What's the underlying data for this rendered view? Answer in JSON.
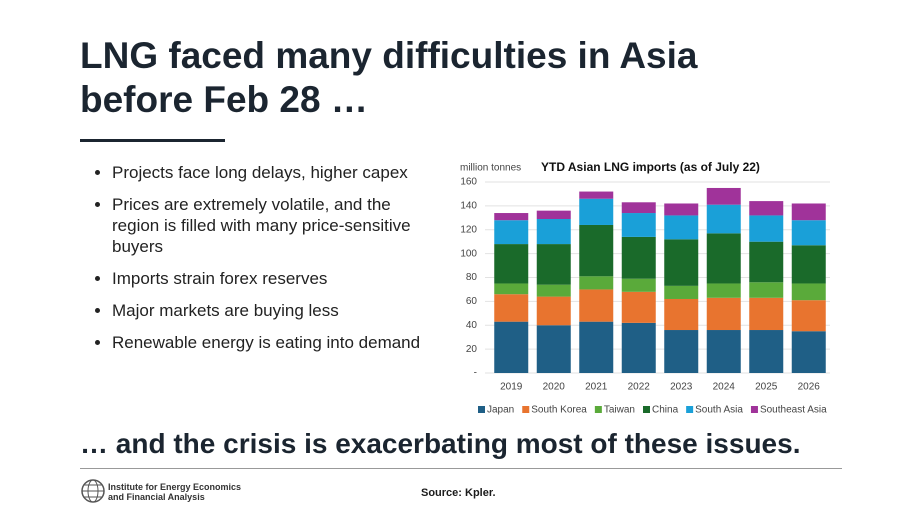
{
  "slide": {
    "title": [
      "LNG faced many difficulties in Asia",
      "before Feb 28 …"
    ],
    "bullets": [
      "Projects face long delays, higher capex",
      "Prices are extremely volatile, and the region is filled with many price-sensitive buyers",
      "Imports strain forex reserves",
      "Major markets are buying less",
      "Renewable energy is eating into demand"
    ],
    "conclusion": "… and the crisis is exacerbating most of these issues.",
    "logo_text": [
      "Institute for Energy Economics",
      "and Financial Analysis"
    ],
    "source": "Source: Kpler."
  },
  "chart_data": {
    "type": "stacked_bar",
    "title": "YTD Asian LNG imports (as of July 22)",
    "y_axis_label": "million tonnes",
    "categories": [
      "2019",
      "2020",
      "2021",
      "2022",
      "2023",
      "2024",
      "2025",
      "2026"
    ],
    "series": [
      {
        "name": "Japan",
        "color": "#1f5f86",
        "values": [
          43,
          40,
          43,
          42,
          36,
          36,
          36,
          35
        ]
      },
      {
        "name": "South Korea",
        "color": "#e8742f",
        "values": [
          23,
          24,
          27,
          26,
          26,
          27,
          27,
          26
        ]
      },
      {
        "name": "Taiwan",
        "color": "#5aaa3a",
        "values": [
          9,
          10,
          11,
          11,
          11,
          12,
          13,
          14
        ]
      },
      {
        "name": "China",
        "color": "#1a6a2a",
        "values": [
          33,
          34,
          43,
          35,
          39,
          42,
          34,
          32
        ]
      },
      {
        "name": "South Asia",
        "color": "#1aa0d8",
        "values": [
          20,
          21,
          22,
          20,
          20,
          24,
          22,
          21
        ]
      },
      {
        "name": "Southeast Asia",
        "color": "#a0339a",
        "values": [
          6,
          7,
          6,
          9,
          10,
          14,
          12,
          14
        ]
      }
    ],
    "ylim": [
      0,
      160
    ],
    "yticks": [
      {
        "value": 0,
        "label": "-"
      },
      20,
      40,
      60,
      80,
      100,
      120,
      140,
      160
    ],
    "grid": true,
    "legend": "bottom"
  }
}
